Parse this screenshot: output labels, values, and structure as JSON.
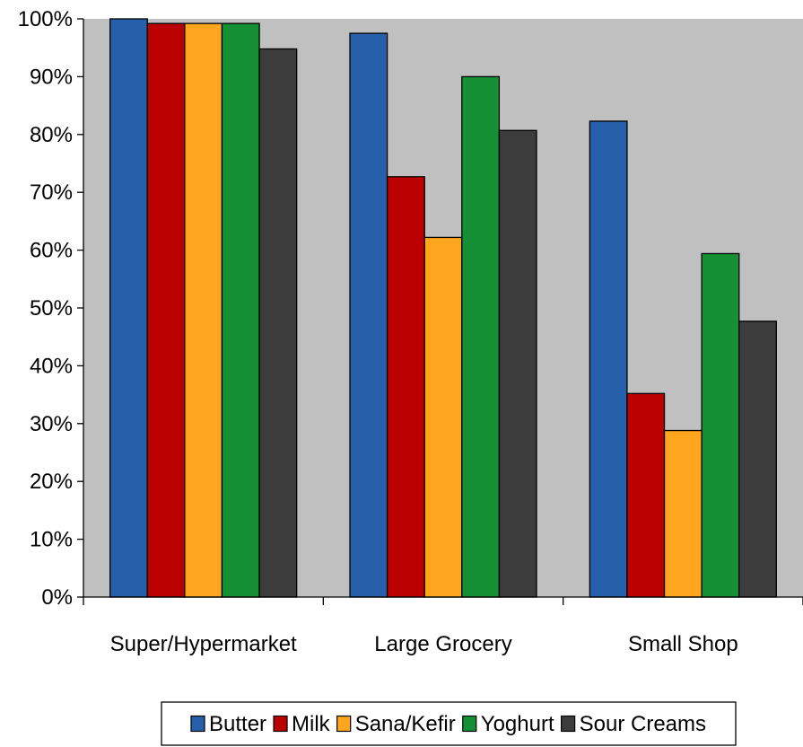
{
  "chart_data": {
    "type": "bar",
    "categories": [
      "Super/Hypermarket",
      "Large Grocery",
      "Small Shop"
    ],
    "series": [
      {
        "name": "Butter",
        "color": "#2660AA",
        "values": [
          100,
          97.5,
          82.3
        ]
      },
      {
        "name": "Milk",
        "color": "#BB0000",
        "values": [
          99.2,
          72.7,
          35.2
        ]
      },
      {
        "name": "Sana/Kefir",
        "color": "#FFA51E",
        "values": [
          99.2,
          62.2,
          28.8
        ]
      },
      {
        "name": "Yoghurt",
        "color": "#169035",
        "values": [
          99.2,
          90.0,
          59.4
        ]
      },
      {
        "name": "Sour Creams",
        "color": "#3C3C3C",
        "values": [
          94.8,
          80.7,
          47.7
        ]
      }
    ],
    "ylim": [
      0,
      100
    ],
    "yticks": [
      0,
      10,
      20,
      30,
      40,
      50,
      60,
      70,
      80,
      90,
      100
    ],
    "ytick_labels": [
      "0%",
      "10%",
      "20%",
      "30%",
      "40%",
      "50%",
      "60%",
      "70%",
      "80%",
      "90%",
      "100%"
    ],
    "grid": false,
    "plot_background": "#C0C0C0",
    "legend_position": "bottom",
    "title": "",
    "xlabel": "",
    "ylabel": ""
  }
}
